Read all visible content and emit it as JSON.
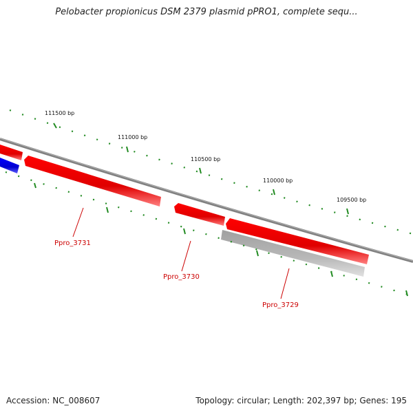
{
  "title": "Pelobacter propionicus DSM 2379 plasmid pPRO1, complete sequ...",
  "bp_labels": [
    "111500 bp",
    "111000 bp",
    "110500 bp",
    "110000 bp",
    "109500 bp"
  ],
  "genes": [
    {
      "label": "Ppro_3731",
      "color": "#ff0000",
      "strand": "reverse"
    },
    {
      "label": "Ppro_3730",
      "color": "#ff0000",
      "strand": "reverse"
    },
    {
      "label": "Ppro_3729",
      "color": "#ff0000",
      "strand": "reverse"
    }
  ],
  "colors": {
    "gene_red": "#ff0000",
    "gene_blue": "#0000ff",
    "gene_grey": "#c0c0c0",
    "backbone": "#808080",
    "ticks": "#228b22",
    "label": "#cc0000"
  },
  "footer": {
    "accession": "Accession: NC_008607",
    "summary": "Topology: circular; Length: 202,397 bp; Genes: 195"
  }
}
